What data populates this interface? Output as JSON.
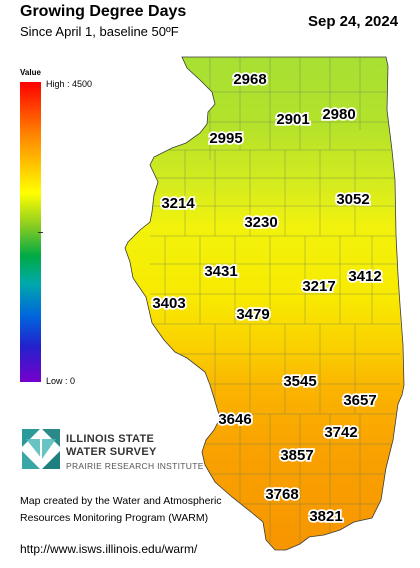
{
  "header": {
    "title": "Growing Degree Days",
    "subtitle": "Since April 1, baseline 50ºF",
    "date": "Sep 24, 2024"
  },
  "legend": {
    "title": "Value",
    "high_label": "High : 4500",
    "low_label": "Low : 0",
    "colors": [
      "#ff0000",
      "#ff8800",
      "#ffff00",
      "#88cc22",
      "#00aa44",
      "#00aaaa",
      "#0066dd",
      "#7700cc"
    ]
  },
  "map": {
    "region": "Illinois",
    "gdd_values": [
      "2968",
      "2901",
      "2980",
      "2995",
      "3214",
      "3230",
      "3052",
      "3431",
      "3217",
      "3412",
      "3403",
      "3479",
      "3545",
      "3657",
      "3646",
      "3742",
      "3857",
      "3768",
      "3821"
    ]
  },
  "organization": {
    "line1": "ILLINOIS STATE",
    "line2": "WATER SURVEY",
    "line3": "PRAIRIE RESEARCH INSTITUTE"
  },
  "credit": {
    "line1": "Map created by the Water and Atmospheric",
    "line2": "Resources Monitoring Program (WARM)"
  },
  "url": "http://www.isws.illinois.edu/warm/"
}
